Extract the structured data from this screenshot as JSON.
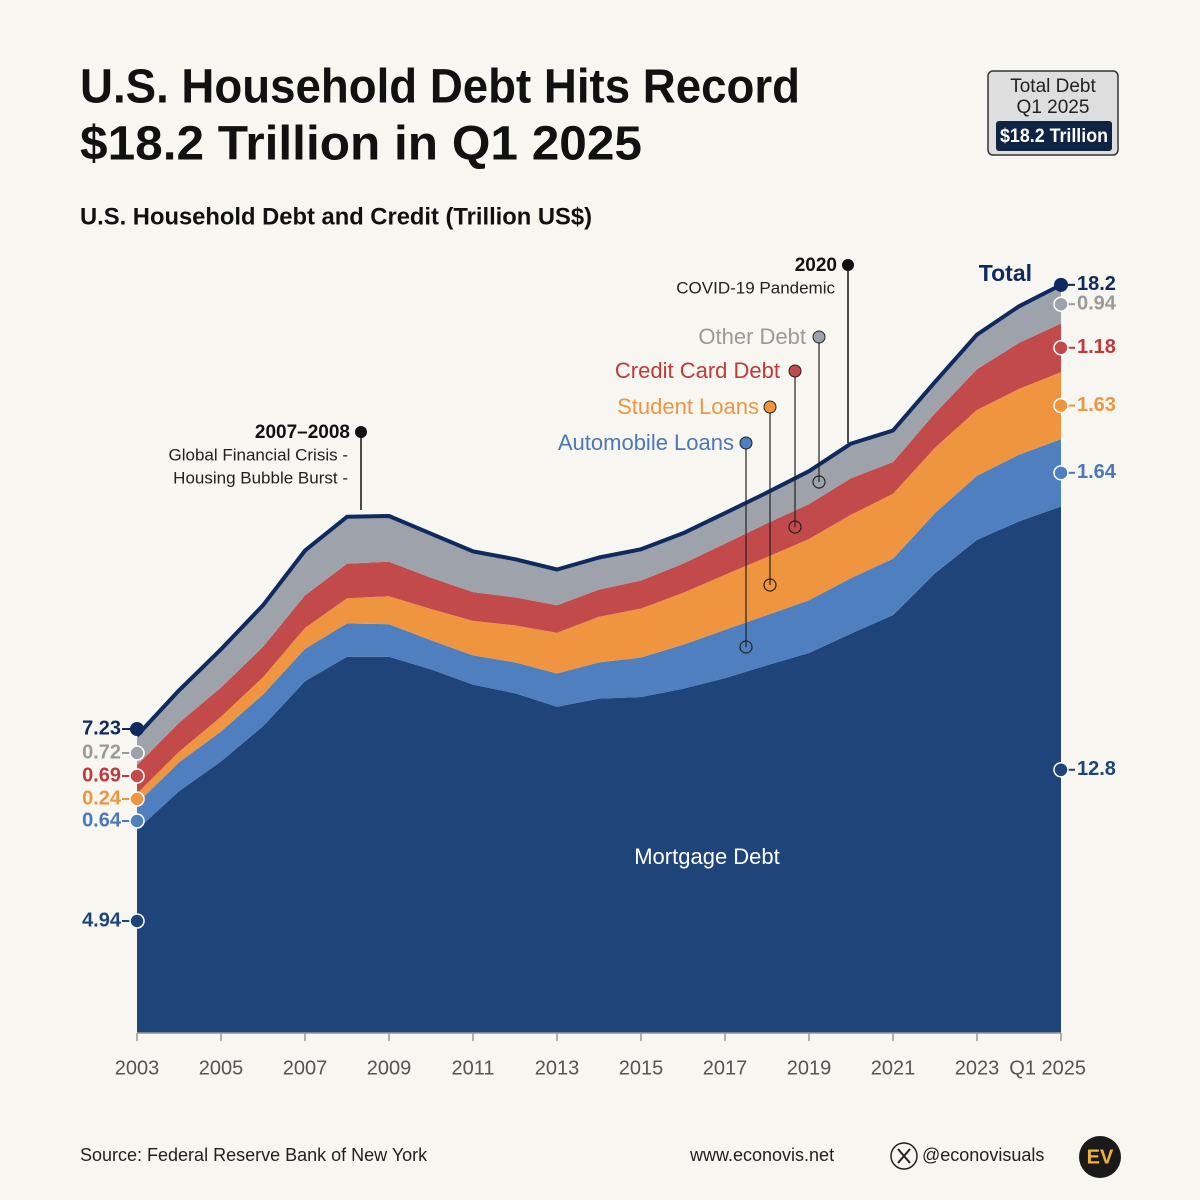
{
  "title_lines": [
    "U.S. Household Debt Hits Record",
    "$18.2 Trillion in Q1 2025"
  ],
  "badge": {
    "lines": [
      "Total Debt",
      "Q1 2025"
    ],
    "highlight": "$18.2 Trillion"
  },
  "chart_data": {
    "type": "stacked_area",
    "subtitle": "U.S. Household Debt and Credit (Trillion US$)",
    "x": [
      2003,
      2004,
      2005,
      2006,
      2007,
      2008,
      2009,
      2010,
      2011,
      2012,
      2013,
      2014,
      2015,
      2016,
      2017,
      2018,
      2019,
      2020,
      2021,
      2022,
      2023,
      2024,
      2025
    ],
    "xlim": [
      2003,
      2025
    ],
    "xticks": [
      2003,
      2005,
      2007,
      2009,
      2011,
      2013,
      2015,
      2017,
      2019,
      2021,
      2023,
      {
        "value": 2025,
        "label": "Q1 2025"
      }
    ],
    "ylim": [
      0,
      18.6
    ],
    "series": [
      {
        "name": "Mortgage Debt",
        "color": "#1f4479",
        "values": [
          4.94,
          5.88,
          6.6,
          7.46,
          8.55,
          9.15,
          9.15,
          8.84,
          8.47,
          8.26,
          7.93,
          8.13,
          8.17,
          8.37,
          8.63,
          8.94,
          9.24,
          9.71,
          10.16,
          11.18,
          11.99,
          12.44,
          12.8
        ]
      },
      {
        "name": "Automobile Loans",
        "color": "#4f7fbf",
        "values": [
          0.64,
          0.7,
          0.73,
          0.77,
          0.79,
          0.81,
          0.79,
          0.71,
          0.71,
          0.75,
          0.81,
          0.88,
          0.96,
          1.07,
          1.17,
          1.22,
          1.28,
          1.35,
          1.37,
          1.46,
          1.56,
          1.62,
          1.64
        ]
      },
      {
        "name": "Student Loans",
        "color": "#f0953f",
        "values": [
          0.24,
          0.26,
          0.36,
          0.42,
          0.51,
          0.61,
          0.68,
          0.76,
          0.84,
          0.9,
          0.99,
          1.11,
          1.19,
          1.26,
          1.34,
          1.41,
          1.49,
          1.54,
          1.58,
          1.59,
          1.6,
          1.6,
          1.63
        ]
      },
      {
        "name": "Credit Card Debt",
        "color": "#c24a4a",
        "values": [
          0.69,
          0.7,
          0.71,
          0.74,
          0.79,
          0.84,
          0.84,
          0.76,
          0.7,
          0.68,
          0.67,
          0.66,
          0.68,
          0.71,
          0.76,
          0.82,
          0.85,
          0.89,
          0.77,
          0.84,
          0.99,
          1.12,
          1.18
        ]
      },
      {
        "name": "Other Debt",
        "color": "#9ea3ab",
        "values": [
          0.72,
          0.79,
          0.93,
          1.01,
          1.09,
          1.14,
          1.11,
          1.07,
          0.99,
          0.93,
          0.87,
          0.78,
          0.76,
          0.74,
          0.74,
          0.75,
          0.8,
          0.84,
          0.77,
          0.76,
          0.84,
          0.89,
          0.94
        ]
      }
    ],
    "total": {
      "name": "Total",
      "color": "#0f2a5e",
      "start": 7.23,
      "end": 18.2
    },
    "annotations": [
      {
        "title": "2007–2008",
        "lines": [
          "Global Financial Crisis -",
          "Housing Bubble Burst -"
        ]
      },
      {
        "title": "2020",
        "lines": [
          "COVID-19 Pandemic"
        ]
      }
    ]
  },
  "footer": {
    "source": "Source: Federal Reserve Bank of New York",
    "website": "www.econovis.net",
    "handle": "@econovisuals",
    "logo": "EV"
  }
}
